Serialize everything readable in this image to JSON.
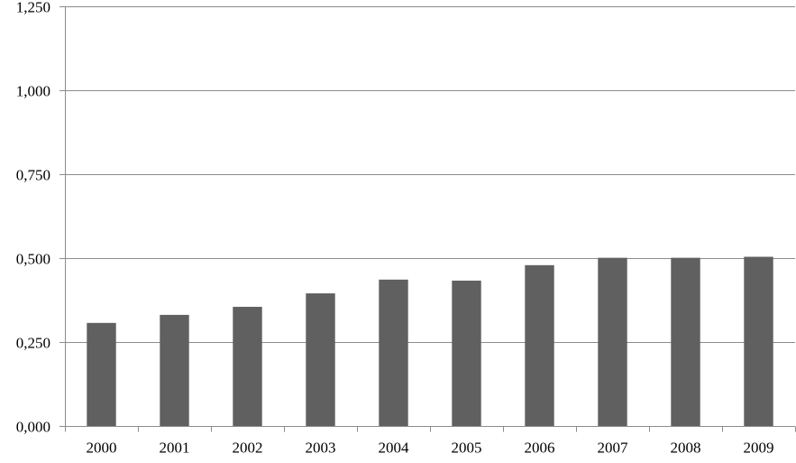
{
  "chart_data": {
    "type": "bar",
    "title": "",
    "xlabel": "",
    "ylabel": "",
    "categories": [
      "2000",
      "2001",
      "2002",
      "2003",
      "2004",
      "2005",
      "2006",
      "2007",
      "2008",
      "2009"
    ],
    "values": [
      0.307,
      0.331,
      0.355,
      0.395,
      0.436,
      0.433,
      0.479,
      0.501,
      0.501,
      0.504
    ],
    "ylim": [
      0,
      1.25
    ],
    "yticks": [
      0,
      0.25,
      0.5,
      0.75,
      1.0,
      1.25
    ],
    "ytick_labels": [
      "0,000",
      "0,250",
      "0,500",
      "0,750",
      "1,000",
      "1,250"
    ],
    "grid": true,
    "legend": "none",
    "bar_color": "#606060"
  }
}
